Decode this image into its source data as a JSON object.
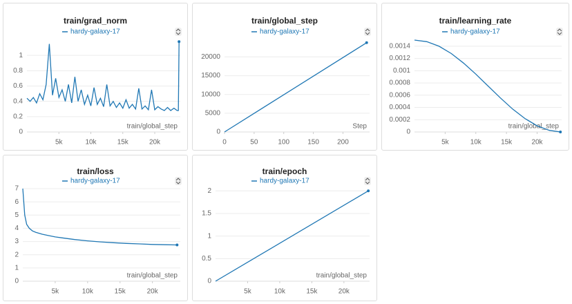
{
  "chart_data": [
    {
      "type": "line",
      "title": "train/grad_norm",
      "x_label": "train/global_step",
      "x": [
        0,
        500,
        1000,
        1500,
        2000,
        2500,
        3000,
        3500,
        4000,
        4500,
        5000,
        5500,
        6000,
        6500,
        7000,
        7500,
        8000,
        8500,
        9000,
        9500,
        10000,
        10500,
        11000,
        11500,
        12000,
        12500,
        13000,
        13500,
        14000,
        14500,
        15000,
        15500,
        16000,
        16500,
        17000,
        17500,
        18000,
        18500,
        19000,
        19500,
        20000,
        20500,
        21000,
        21500,
        22000,
        22500,
        23000,
        23500,
        23700,
        23800
      ],
      "series": [
        {
          "name": "hardy-galaxy-17",
          "color": "#1f77b4",
          "values": [
            0.44,
            0.4,
            0.45,
            0.38,
            0.5,
            0.42,
            0.62,
            1.15,
            0.48,
            0.7,
            0.45,
            0.55,
            0.4,
            0.62,
            0.38,
            0.72,
            0.4,
            0.55,
            0.36,
            0.48,
            0.34,
            0.58,
            0.36,
            0.44,
            0.33,
            0.62,
            0.34,
            0.4,
            0.32,
            0.38,
            0.31,
            0.42,
            0.31,
            0.36,
            0.3,
            0.57,
            0.3,
            0.34,
            0.29,
            0.55,
            0.29,
            0.33,
            0.3,
            0.28,
            0.32,
            0.28,
            0.31,
            0.28,
            0.28,
            1.18
          ]
        }
      ],
      "xlim": [
        0,
        24000
      ],
      "ylim": [
        0,
        1.2
      ],
      "xticks": [
        {
          "value": 5000,
          "label": "5k"
        },
        {
          "value": 10000,
          "label": "10k"
        },
        {
          "value": 15000,
          "label": "15k"
        },
        {
          "value": 20000,
          "label": "20k"
        }
      ],
      "yticks": [
        0,
        0.2,
        0.4,
        0.6,
        0.8,
        1
      ],
      "grid": true
    },
    {
      "type": "line",
      "title": "train/global_step",
      "x_label": "Step",
      "x": [
        0,
        240
      ],
      "series": [
        {
          "name": "hardy-galaxy-17",
          "color": "#1f77b4",
          "values": [
            0,
            23800
          ]
        }
      ],
      "xlim": [
        0,
        245
      ],
      "ylim": [
        0,
        24500
      ],
      "xticks": [
        0,
        50,
        100,
        150,
        200
      ],
      "yticks": [
        0,
        5000,
        10000,
        15000,
        20000
      ],
      "grid": true
    },
    {
      "type": "line",
      "title": "train/learning_rate",
      "x_label": "train/global_step",
      "x": [
        0,
        2000,
        4000,
        6000,
        8000,
        10000,
        12000,
        14000,
        16000,
        18000,
        20000,
        22000,
        23800
      ],
      "series": [
        {
          "name": "hardy-galaxy-17",
          "color": "#1f77b4",
          "values": [
            0.0015,
            0.001474,
            0.0014,
            0.00128,
            0.001125,
            0.000944,
            0.00075,
            0.000556,
            0.000375,
            0.00022,
            0.0001,
            2.6e-05,
            0
          ]
        }
      ],
      "xlim": [
        0,
        24000
      ],
      "ylim": [
        0,
        0.0015
      ],
      "xticks": [
        {
          "value": 5000,
          "label": "5k"
        },
        {
          "value": 10000,
          "label": "10k"
        },
        {
          "value": 15000,
          "label": "15k"
        },
        {
          "value": 20000,
          "label": "20k"
        }
      ],
      "yticks": [
        0,
        0.0002,
        0.0004,
        0.0006,
        0.0008,
        0.001,
        0.0012,
        0.0014
      ],
      "grid": true
    },
    {
      "type": "line",
      "title": "train/loss",
      "x_label": "train/global_step",
      "x": [
        0,
        300,
        600,
        1000,
        1500,
        2000,
        3000,
        4000,
        5000,
        6000,
        8000,
        10000,
        12000,
        14000,
        16000,
        18000,
        20000,
        22000,
        23800
      ],
      "series": [
        {
          "name": "hardy-galaxy-17",
          "color": "#1f77b4",
          "values": [
            7,
            5.0,
            4.3,
            4.0,
            3.8,
            3.7,
            3.55,
            3.45,
            3.35,
            3.28,
            3.15,
            3.05,
            2.97,
            2.91,
            2.86,
            2.82,
            2.78,
            2.76,
            2.74
          ]
        }
      ],
      "xlim": [
        0,
        24300
      ],
      "ylim": [
        0,
        7
      ],
      "xticks": [
        {
          "value": 5000,
          "label": "5k"
        },
        {
          "value": 10000,
          "label": "10k"
        },
        {
          "value": 15000,
          "label": "15k"
        },
        {
          "value": 20000,
          "label": "20k"
        }
      ],
      "yticks": [
        0,
        1,
        2,
        3,
        4,
        5,
        6,
        7
      ],
      "grid": true
    },
    {
      "type": "line",
      "title": "train/epoch",
      "x_label": "train/global_step",
      "x": [
        0,
        23800
      ],
      "series": [
        {
          "name": "hardy-galaxy-17",
          "color": "#1f77b4",
          "values": [
            0,
            2
          ]
        }
      ],
      "xlim": [
        0,
        24000
      ],
      "ylim": [
        0,
        2.05
      ],
      "xticks": [
        {
          "value": 5000,
          "label": "5k"
        },
        {
          "value": 10000,
          "label": "10k"
        },
        {
          "value": 15000,
          "label": "15k"
        },
        {
          "value": 20000,
          "label": "20k"
        }
      ],
      "yticks": [
        0,
        0.5,
        1,
        1.5,
        2
      ],
      "grid": true
    }
  ]
}
